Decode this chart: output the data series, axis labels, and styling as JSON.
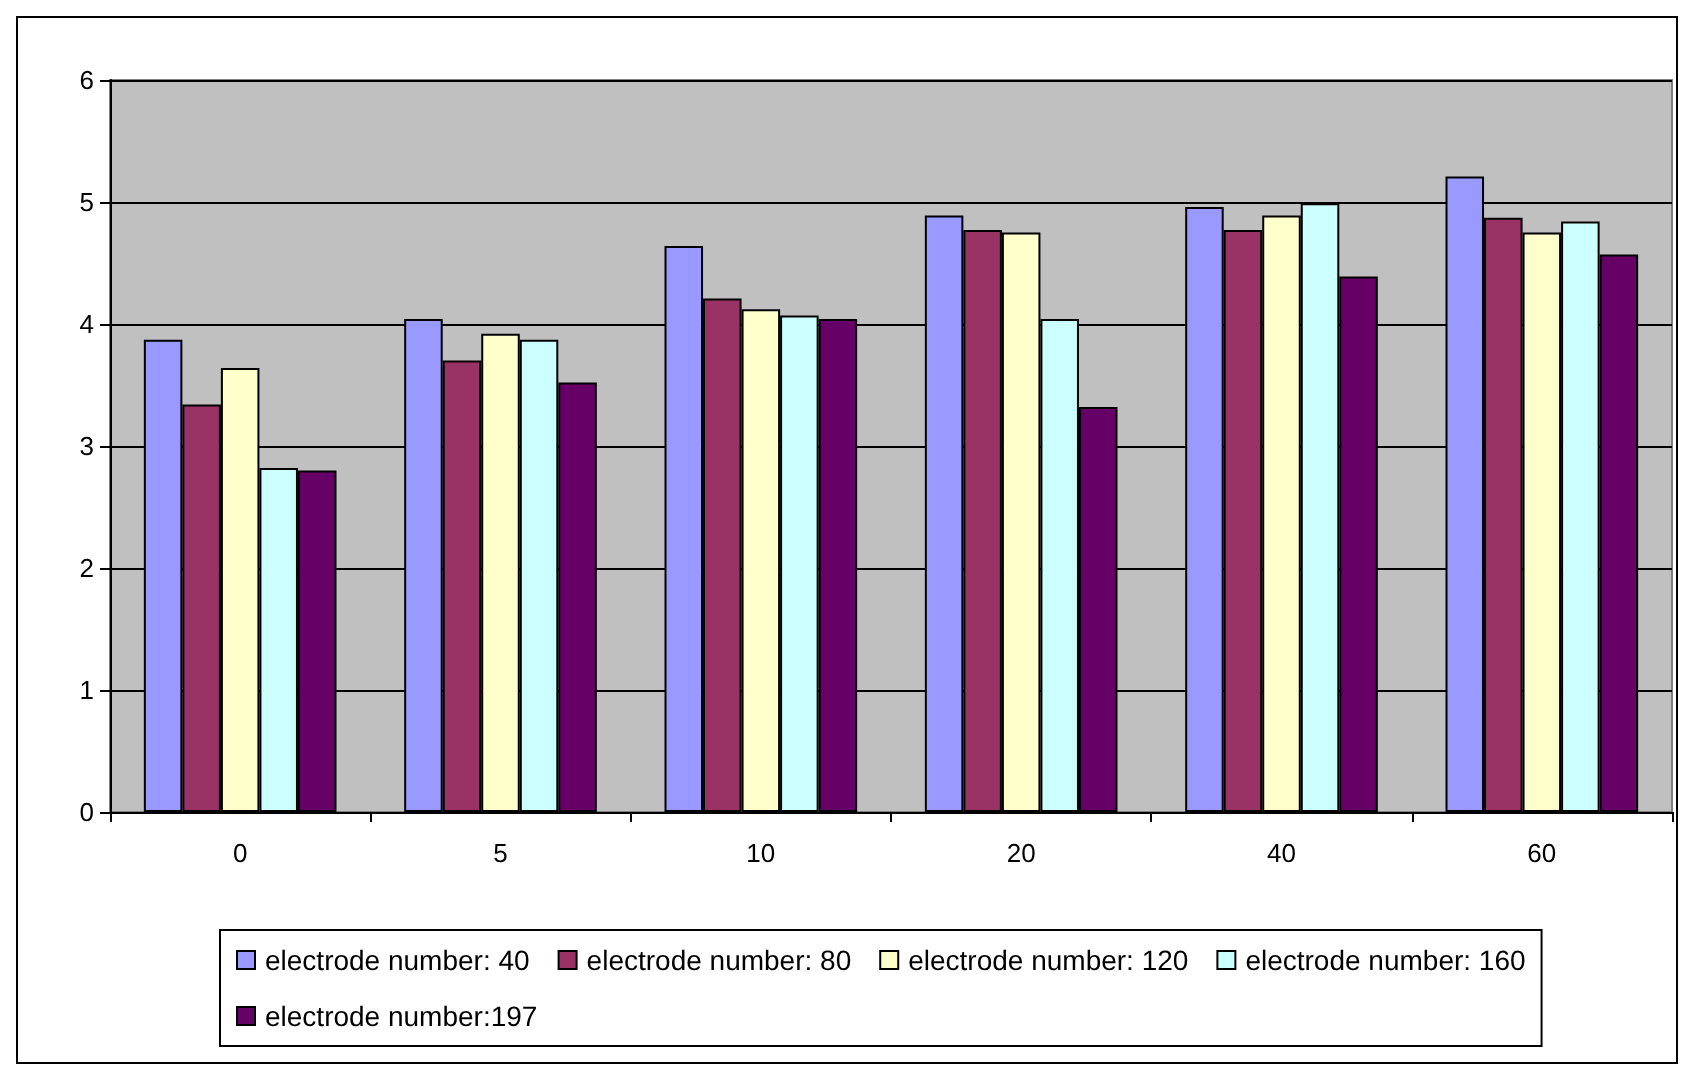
{
  "chart_data": {
    "type": "bar",
    "categories": [
      "0",
      "5",
      "10",
      "20",
      "40",
      "60"
    ],
    "series": [
      {
        "name": "electrode number: 40",
        "color": "#9999ff",
        "values": [
          3.87,
          4.04,
          4.64,
          4.89,
          4.96,
          5.21
        ]
      },
      {
        "name": "electrode number: 80",
        "color": "#993366",
        "values": [
          3.34,
          3.7,
          4.21,
          4.77,
          4.77,
          4.87
        ]
      },
      {
        "name": "electrode number: 120",
        "color": "#ffffcc",
        "values": [
          3.64,
          3.92,
          4.12,
          4.75,
          4.89,
          4.75
        ]
      },
      {
        "name": "electrode number: 160",
        "color": "#ccffff",
        "values": [
          2.82,
          3.87,
          4.07,
          4.04,
          4.99,
          4.84
        ]
      },
      {
        "name": "electrode number:197",
        "color": "#660066",
        "values": [
          2.8,
          3.52,
          4.04,
          3.32,
          4.39,
          4.57
        ]
      }
    ],
    "ylim": [
      0,
      6
    ],
    "yticks": [
      0,
      1,
      2,
      3,
      4,
      5,
      6
    ],
    "grid": "y",
    "legend": "bottom"
  }
}
